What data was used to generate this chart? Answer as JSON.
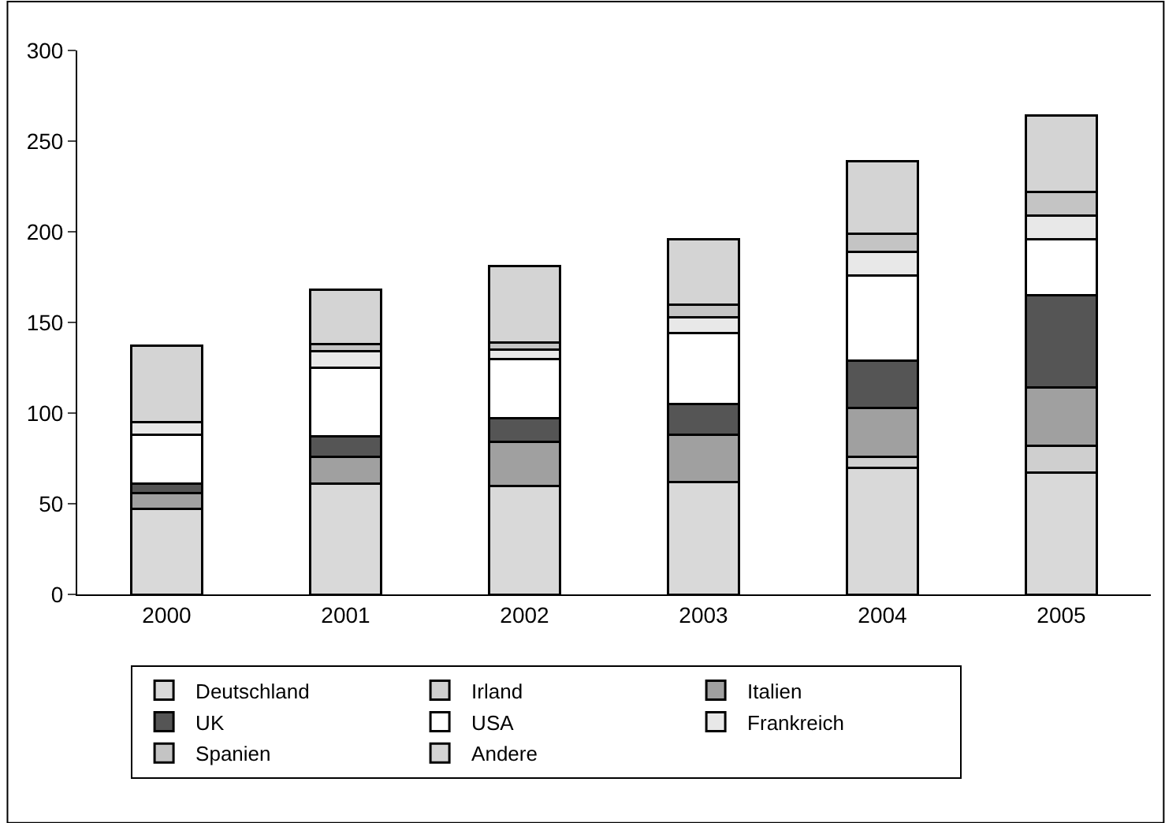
{
  "chart_data": {
    "type": "bar",
    "stacked": true,
    "categories": [
      "2000",
      "2001",
      "2002",
      "2003",
      "2004",
      "2005"
    ],
    "series": [
      {
        "name": "Deutschland",
        "color": "#d9d9d9",
        "values": [
          47,
          61,
          60,
          62,
          70,
          67
        ]
      },
      {
        "name": "Irland",
        "color": "#cfcfcf",
        "values": [
          0,
          0,
          0,
          0,
          6,
          15
        ]
      },
      {
        "name": "Italien",
        "color": "#a0a0a0",
        "values": [
          9,
          15,
          24,
          26,
          27,
          32
        ]
      },
      {
        "name": "UK",
        "color": "#555555",
        "values": [
          5,
          11,
          13,
          17,
          26,
          51
        ]
      },
      {
        "name": "USA",
        "color": "#ffffff",
        "values": [
          27,
          38,
          33,
          39,
          47,
          31
        ]
      },
      {
        "name": "Frankreich",
        "color": "#e8e8e8",
        "values": [
          7,
          9,
          5,
          9,
          13,
          13
        ]
      },
      {
        "name": "Spanien",
        "color": "#c4c4c4",
        "values": [
          0,
          4,
          4,
          7,
          10,
          13
        ]
      },
      {
        "name": "Andere",
        "color": "#d4d4d4",
        "values": [
          42,
          30,
          42,
          36,
          40,
          42
        ]
      }
    ],
    "ylim": [
      0,
      300
    ],
    "yticks": [
      0,
      50,
      100,
      150,
      200,
      250,
      300
    ],
    "legend": "bottom"
  }
}
